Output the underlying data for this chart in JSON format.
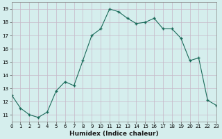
{
  "x": [
    0,
    1,
    2,
    3,
    4,
    5,
    6,
    7,
    8,
    9,
    10,
    11,
    12,
    13,
    14,
    15,
    16,
    17,
    18,
    19,
    20,
    21,
    22,
    23
  ],
  "y": [
    12.5,
    11.5,
    11.0,
    10.8,
    11.2,
    12.8,
    13.5,
    13.2,
    15.1,
    17.0,
    17.5,
    19.0,
    18.8,
    18.3,
    17.9,
    18.0,
    18.3,
    17.5,
    17.5,
    16.8,
    15.1,
    15.3,
    12.1,
    11.7
  ],
  "xlim": [
    0,
    23
  ],
  "ylim": [
    10.5,
    19.5
  ],
  "yticks": [
    11,
    12,
    13,
    14,
    15,
    16,
    17,
    18,
    19
  ],
  "xticks": [
    0,
    1,
    2,
    3,
    4,
    5,
    6,
    7,
    8,
    9,
    10,
    11,
    12,
    13,
    14,
    15,
    16,
    17,
    18,
    19,
    20,
    21,
    22,
    23
  ],
  "line_color": "#1a6b5a",
  "marker_color": "#1a6b5a",
  "bg_color": "#d5eeed",
  "grid_color": "#c8b8c8",
  "plot_bg": "#d5eeed",
  "xlabel": "Humidex (Indice chaleur)",
  "tick_fontsize": 5.0,
  "xlabel_fontsize": 6.5
}
